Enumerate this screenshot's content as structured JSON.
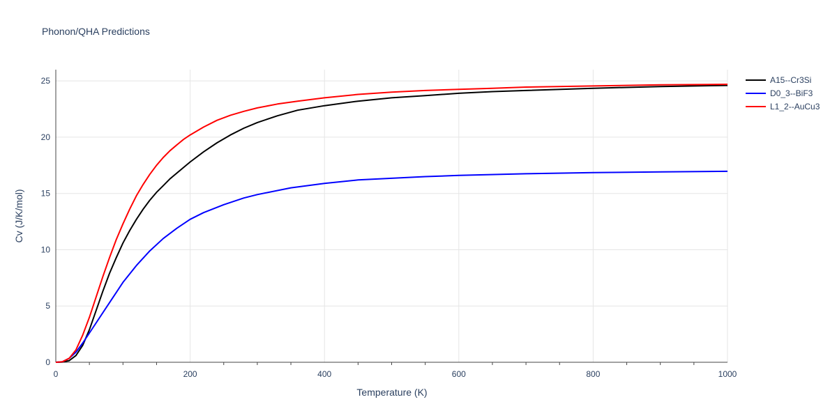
{
  "chart_data": {
    "type": "line",
    "title": "Phonon/QHA Predictions",
    "xlabel": "Temperature (K)",
    "ylabel": "Cv (J/K/mol)",
    "xlim": [
      0,
      1000
    ],
    "ylim": [
      0,
      26
    ],
    "xticks": [
      0,
      200,
      400,
      600,
      800,
      1000
    ],
    "yticks": [
      0,
      5,
      10,
      15,
      20,
      25
    ],
    "grid": true,
    "legend_position": "top-right",
    "series": [
      {
        "name": "A15--Cr3Si",
        "color": "#000000",
        "x": [
          0,
          10,
          20,
          30,
          40,
          50,
          60,
          70,
          80,
          90,
          100,
          110,
          120,
          130,
          140,
          150,
          160,
          170,
          180,
          190,
          200,
          220,
          240,
          260,
          280,
          300,
          330,
          360,
          400,
          450,
          500,
          550,
          600,
          650,
          700,
          800,
          900,
          1000
        ],
        "y": [
          0,
          0.02,
          0.15,
          0.6,
          1.5,
          2.9,
          4.6,
          6.3,
          7.9,
          9.3,
          10.6,
          11.7,
          12.7,
          13.6,
          14.4,
          15.1,
          15.7,
          16.3,
          16.8,
          17.3,
          17.8,
          18.7,
          19.5,
          20.2,
          20.8,
          21.3,
          21.9,
          22.4,
          22.8,
          23.2,
          23.5,
          23.7,
          23.9,
          24.05,
          24.15,
          24.35,
          24.5,
          24.6
        ]
      },
      {
        "name": "D0_3--BiF3",
        "color": "#0000ff",
        "x": [
          0,
          10,
          20,
          30,
          40,
          50,
          60,
          70,
          80,
          90,
          100,
          120,
          140,
          160,
          180,
          200,
          220,
          250,
          280,
          300,
          350,
          400,
          450,
          500,
          550,
          600,
          700,
          800,
          900,
          1000
        ],
        "y": [
          0,
          0.05,
          0.35,
          0.9,
          1.7,
          2.6,
          3.5,
          4.4,
          5.3,
          6.2,
          7.1,
          8.6,
          9.9,
          11.0,
          11.9,
          12.7,
          13.3,
          14.0,
          14.6,
          14.9,
          15.5,
          15.9,
          16.2,
          16.35,
          16.5,
          16.6,
          16.75,
          16.85,
          16.92,
          16.97
        ]
      },
      {
        "name": "L1_2--AuCu3",
        "color": "#ff0000",
        "x": [
          0,
          10,
          20,
          30,
          40,
          50,
          60,
          70,
          80,
          90,
          100,
          110,
          120,
          130,
          140,
          150,
          160,
          170,
          180,
          190,
          200,
          220,
          240,
          260,
          280,
          300,
          330,
          360,
          400,
          450,
          500,
          550,
          600,
          650,
          700,
          800,
          900,
          1000
        ],
        "y": [
          0,
          0.05,
          0.35,
          1.1,
          2.4,
          4.0,
          5.8,
          7.6,
          9.3,
          10.9,
          12.3,
          13.6,
          14.8,
          15.8,
          16.7,
          17.5,
          18.2,
          18.8,
          19.3,
          19.8,
          20.2,
          20.9,
          21.5,
          21.95,
          22.3,
          22.6,
          22.95,
          23.2,
          23.5,
          23.8,
          24.0,
          24.15,
          24.25,
          24.35,
          24.45,
          24.55,
          24.65,
          24.7
        ]
      }
    ]
  }
}
